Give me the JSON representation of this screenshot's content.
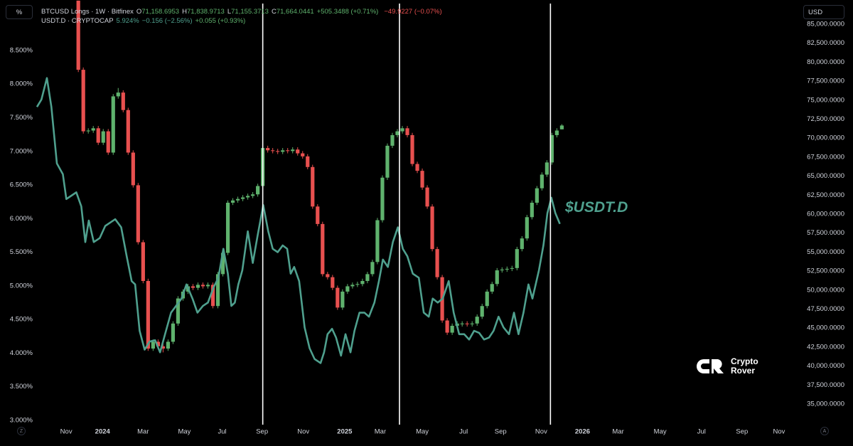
{
  "chart_data": {
    "type": "candlestick",
    "y_label": "%",
    "y2_label": "USD",
    "xlim": [
      -15.71,
      144.71
    ],
    "xticks": [
      {
        "value": -2.43,
        "label": "Nov"
      },
      {
        "value": 4.86,
        "label": "2024"
      },
      {
        "value": 13.0,
        "label": "Mar"
      },
      {
        "value": 21.29,
        "label": "May"
      },
      {
        "value": 28.86,
        "label": "Jul"
      },
      {
        "value": 36.86,
        "label": "Sep"
      },
      {
        "value": 45.14,
        "label": "Nov"
      },
      {
        "value": 53.43,
        "label": "2025"
      },
      {
        "value": 60.57,
        "label": "Mar"
      },
      {
        "value": 69.0,
        "label": "May"
      },
      {
        "value": 77.29,
        "label": "Jul"
      },
      {
        "value": 84.71,
        "label": "Sep"
      },
      {
        "value": 92.86,
        "label": "Nov"
      },
      {
        "value": 101.14,
        "label": "2026"
      },
      {
        "value": 108.29,
        "label": "Mar"
      },
      {
        "value": 116.71,
        "label": "May"
      },
      {
        "value": 125.0,
        "label": "Jul"
      },
      {
        "value": 133.14,
        "label": "Sep"
      },
      {
        "value": 140.57,
        "label": "Nov"
      }
    ],
    "ylim": [
      2.934,
      9.251
    ],
    "yticks": [
      {
        "value": 3,
        "label": "3.000%"
      },
      {
        "value": 3.5,
        "label": "3.500%"
      },
      {
        "value": 4,
        "label": "4.000%"
      },
      {
        "value": 4.5,
        "label": "4.500%"
      },
      {
        "value": 5,
        "label": "5.000%"
      },
      {
        "value": 5.5,
        "label": "5.500%"
      },
      {
        "value": 6,
        "label": "6.000%"
      },
      {
        "value": 6.5,
        "label": "6.500%"
      },
      {
        "value": 7,
        "label": "7.000%"
      },
      {
        "value": 7.5,
        "label": "7.500%"
      },
      {
        "value": 8,
        "label": "8.000%"
      },
      {
        "value": 8.5,
        "label": "8.500%"
      }
    ],
    "y2lim": [
      32287,
      88183
    ],
    "y2ticks": [
      {
        "value": 35000,
        "label": "35,000.0000"
      },
      {
        "value": 37500,
        "label": "37,500.0000"
      },
      {
        "value": 40000,
        "label": "40,000.0000"
      },
      {
        "value": 42500,
        "label": "42,500.0000"
      },
      {
        "value": 45000,
        "label": "45,000.0000"
      },
      {
        "value": 47500,
        "label": "47,500.0000"
      },
      {
        "value": 50000,
        "label": "50,000.0000"
      },
      {
        "value": 52500,
        "label": "52,500.0000"
      },
      {
        "value": 55000,
        "label": "55,000.0000"
      },
      {
        "value": 57500,
        "label": "57,500.0000"
      },
      {
        "value": 60000,
        "label": "60,000.0000"
      },
      {
        "value": 62500,
        "label": "62,500.0000"
      },
      {
        "value": 65000,
        "label": "65,000.0000"
      },
      {
        "value": 67500,
        "label": "67,500.0000"
      },
      {
        "value": 70000,
        "label": "70,000.0000"
      },
      {
        "value": 72500,
        "label": "72,500.0000"
      },
      {
        "value": 75000,
        "label": "75,000.0000"
      },
      {
        "value": 77500,
        "label": "77,500.0000"
      },
      {
        "value": 80000,
        "label": "80,000.0000"
      },
      {
        "value": 82500,
        "label": "82,500.0000"
      },
      {
        "value": 85000,
        "label": "85,000.0000"
      }
    ],
    "grid": false,
    "vertical_lines": [
      37.0,
      64.43,
      94.71
    ],
    "vertical_line_color": "#ffffff",
    "candles": {
      "name": "BTCUSD Longs · 1W · Bitfinex",
      "axis": "y2",
      "up_color": "#5fb26d",
      "down_color": "#e8504f",
      "x": [
        0,
        1,
        2,
        3,
        4,
        5,
        6,
        7,
        8,
        9,
        10,
        11,
        12,
        13,
        14,
        15,
        16,
        17,
        18,
        19,
        20,
        21,
        22,
        23,
        24,
        25,
        26,
        27,
        28,
        29,
        30,
        31,
        32,
        33,
        34,
        35,
        36,
        37,
        38,
        39,
        40,
        41,
        42,
        43,
        44,
        45,
        46,
        47,
        48,
        49,
        50,
        51,
        52,
        53,
        54,
        55,
        56,
        57,
        58,
        59,
        60,
        61,
        62,
        63,
        64,
        65,
        66,
        67,
        68,
        69,
        70,
        71,
        72,
        73,
        74,
        75,
        76,
        77,
        78,
        79,
        80,
        81,
        82,
        83,
        84,
        85,
        86,
        87,
        88,
        89,
        90,
        91,
        92,
        93,
        94,
        95,
        96,
        97
      ],
      "open": [
        88100,
        79000,
        70900,
        71000,
        71300,
        69400,
        70900,
        68100,
        75500,
        76000,
        73700,
        68100,
        63800,
        56300,
        51200,
        42300,
        43200,
        42600,
        42300,
        43200,
        45600,
        48900,
        49800,
        50500,
        50300,
        50700,
        50500,
        50700,
        47900,
        52100,
        54900,
        61500,
        61800,
        62000,
        62200,
        62400,
        62600,
        63700,
        68700,
        68400,
        68300,
        68200,
        68400,
        68300,
        68500,
        68000,
        67600,
        66200,
        61000,
        58700,
        52100,
        51700,
        50300,
        47700,
        49800,
        50500,
        50700,
        50800,
        51200,
        52100,
        53700,
        59200,
        64800,
        69000,
        70400,
        70900,
        71300,
        70400,
        66600,
        65700,
        63500,
        61000,
        55400,
        51700,
        46000,
        44400,
        45300,
        45500,
        45600,
        45500,
        45600,
        46500,
        47900,
        49800,
        50800,
        52600,
        52700,
        52800,
        52900,
        55400,
        56800,
        59600,
        61500,
        63400,
        65200,
        66800,
        70400,
        71158.6953
      ],
      "high": [
        88100,
        79300,
        71300,
        71600,
        71600,
        71200,
        71200,
        75800,
        76600,
        76300,
        74000,
        68400,
        64100,
        56600,
        51500,
        43500,
        43500,
        42900,
        43500,
        45900,
        49200,
        50100,
        50800,
        50800,
        51000,
        51000,
        51000,
        51000,
        52400,
        55200,
        61800,
        62100,
        62300,
        62500,
        62700,
        62900,
        64000,
        69000,
        69000,
        68700,
        68600,
        68700,
        68700,
        68800,
        68800,
        68300,
        67900,
        66500,
        61300,
        59000,
        52400,
        52000,
        50600,
        50100,
        50800,
        51000,
        51100,
        51500,
        52400,
        54000,
        59500,
        65100,
        69300,
        70700,
        71200,
        71600,
        71600,
        70700,
        66900,
        66000,
        63800,
        61300,
        55700,
        52000,
        46300,
        45600,
        45900,
        45900,
        45900,
        45900,
        46800,
        48200,
        50100,
        51100,
        52900,
        53000,
        53100,
        53200,
        55700,
        57100,
        59900,
        61800,
        63700,
        65500,
        67100,
        70700,
        71300,
        71838.9713
      ],
      "low": [
        78700,
        70600,
        70600,
        70700,
        69100,
        69100,
        67800,
        67800,
        75200,
        73400,
        67800,
        63500,
        56000,
        50900,
        42000,
        42000,
        42300,
        41800,
        42000,
        42900,
        45300,
        48600,
        49500,
        50000,
        50000,
        50200,
        50200,
        47600,
        47600,
        51800,
        54600,
        61200,
        61500,
        61700,
        61900,
        62100,
        62300,
        63400,
        68100,
        68000,
        67900,
        67900,
        68000,
        68000,
        67700,
        67300,
        65900,
        60700,
        58400,
        51800,
        51400,
        50000,
        47400,
        47400,
        49500,
        50200,
        50400,
        50500,
        50900,
        51800,
        53400,
        58900,
        64500,
        68700,
        70100,
        70600,
        70100,
        66300,
        65400,
        63200,
        60700,
        55100,
        51400,
        45700,
        44100,
        44100,
        45000,
        45200,
        45200,
        45200,
        45300,
        46200,
        47600,
        49500,
        50500,
        52300,
        52400,
        52500,
        52600,
        55100,
        56500,
        59300,
        61200,
        63100,
        64900,
        66500,
        70100,
        71155.3713
      ],
      "close": [
        79000,
        70900,
        71000,
        71300,
        69400,
        70900,
        68100,
        75500,
        76000,
        73700,
        68100,
        63800,
        56300,
        51200,
        42300,
        43200,
        42600,
        42300,
        43200,
        45600,
        48900,
        49800,
        50500,
        50300,
        50700,
        50500,
        50700,
        47900,
        52100,
        54900,
        61500,
        61800,
        62000,
        62200,
        62400,
        62600,
        63700,
        68700,
        68400,
        68300,
        68200,
        68400,
        68300,
        68500,
        68000,
        67600,
        66200,
        61000,
        58700,
        52100,
        51700,
        50300,
        47700,
        49800,
        50500,
        50700,
        50800,
        51200,
        52100,
        53700,
        59200,
        64800,
        69000,
        70400,
        70900,
        71300,
        70400,
        66600,
        65700,
        63500,
        61000,
        55400,
        51700,
        46000,
        44400,
        45300,
        45600,
        45600,
        45500,
        45600,
        46500,
        47900,
        49800,
        50800,
        52600,
        52700,
        52800,
        52900,
        55400,
        56800,
        59600,
        61500,
        63400,
        65200,
        66800,
        70400,
        71000,
        71664.0441
      ]
    },
    "series": [
      {
        "name": "USDT.D · CRYPTOCAP",
        "type": "line",
        "color": "#4fa08e",
        "x": [
          -8.3,
          -7.4,
          -6.3,
          -5.4,
          -4.3,
          -3.1,
          -2.4,
          -1.4,
          -0.4,
          0.6,
          1.4,
          2.1,
          3.1,
          4.3,
          5.4,
          6.6,
          7.4,
          8.6,
          9.7,
          10.7,
          11.4,
          12.3,
          13.3,
          14.3,
          15.4,
          16.4,
          17.4,
          18.6,
          19.6,
          20.7,
          21.7,
          22.9,
          23.9,
          25.0,
          26.0,
          27.1,
          28.1,
          29.1,
          30.0,
          30.7,
          31.4,
          32.1,
          32.9,
          34.0,
          35.0,
          36.0,
          37.1,
          38.1,
          39.0,
          40.0,
          41.0,
          41.9,
          42.6,
          43.3,
          44.3,
          45.4,
          46.4,
          47.4,
          48.6,
          49.3,
          50.0,
          50.9,
          51.7,
          52.7,
          53.6,
          54.6,
          55.4,
          56.4,
          57.4,
          58.3,
          59.4,
          60.3,
          61.1,
          62.1,
          63.1,
          64.1,
          65.1,
          66.0,
          67.1,
          68.3,
          69.3,
          70.3,
          71.1,
          72.1,
          73.1,
          74.3,
          75.3,
          76.4,
          77.4,
          78.4,
          79.4,
          80.4,
          81.4,
          82.4,
          83.3,
          84.3,
          85.3,
          86.4,
          87.4,
          88.3,
          89.3,
          90.3,
          91.1,
          92.4,
          93.3,
          94.1,
          94.9,
          95.7,
          96.6
        ],
        "values": [
          7.66,
          7.77,
          8.09,
          7.66,
          6.82,
          6.66,
          6.29,
          6.34,
          6.39,
          6.18,
          5.65,
          5.97,
          5.65,
          5.71,
          5.89,
          5.95,
          5.99,
          5.87,
          5.44,
          5.07,
          5.02,
          4.33,
          4.05,
          4.17,
          4.19,
          4.01,
          4.28,
          4.6,
          4.7,
          4.81,
          5.02,
          4.81,
          4.6,
          4.7,
          4.75,
          4.97,
          5.12,
          5.55,
          5.18,
          4.7,
          4.75,
          5.02,
          5.23,
          5.81,
          5.34,
          5.76,
          6.2,
          5.81,
          5.55,
          5.5,
          5.6,
          5.55,
          5.18,
          5.28,
          5.07,
          4.38,
          4.07,
          3.91,
          3.85,
          4.01,
          4.28,
          4.36,
          4.23,
          3.96,
          4.28,
          4.01,
          4.33,
          4.6,
          4.6,
          4.54,
          4.75,
          5.07,
          5.39,
          5.28,
          5.65,
          5.87,
          5.55,
          5.44,
          5.18,
          5.12,
          4.6,
          4.54,
          4.81,
          4.75,
          4.81,
          5.07,
          4.6,
          4.28,
          4.28,
          4.2,
          4.33,
          4.3,
          4.2,
          4.23,
          4.33,
          4.54,
          4.38,
          4.28,
          4.6,
          4.28,
          4.6,
          5.02,
          4.81,
          5.23,
          5.6,
          6.08,
          6.31,
          6.08,
          5.92
        ]
      }
    ],
    "ohlc_header": {
      "labels": [
        "O",
        "H",
        "L",
        "C"
      ],
      "values": [
        "71,158.6953",
        "71,838.9713",
        "71,155.3713",
        "71,664.0441"
      ],
      "change": "+505.3488 (+0.71%)",
      "extra": "−49.9227 (−0.07%)"
    },
    "line_header": {
      "value": "5.924%",
      "change": "−0.156 (−2.56%)",
      "extra": "+0.055 (+0.93%)"
    },
    "annotation": "$USDT.D"
  },
  "controls": {
    "left": "Z",
    "right": "A"
  },
  "watermark": {
    "line1": "Crypto",
    "line2": "Rover"
  }
}
